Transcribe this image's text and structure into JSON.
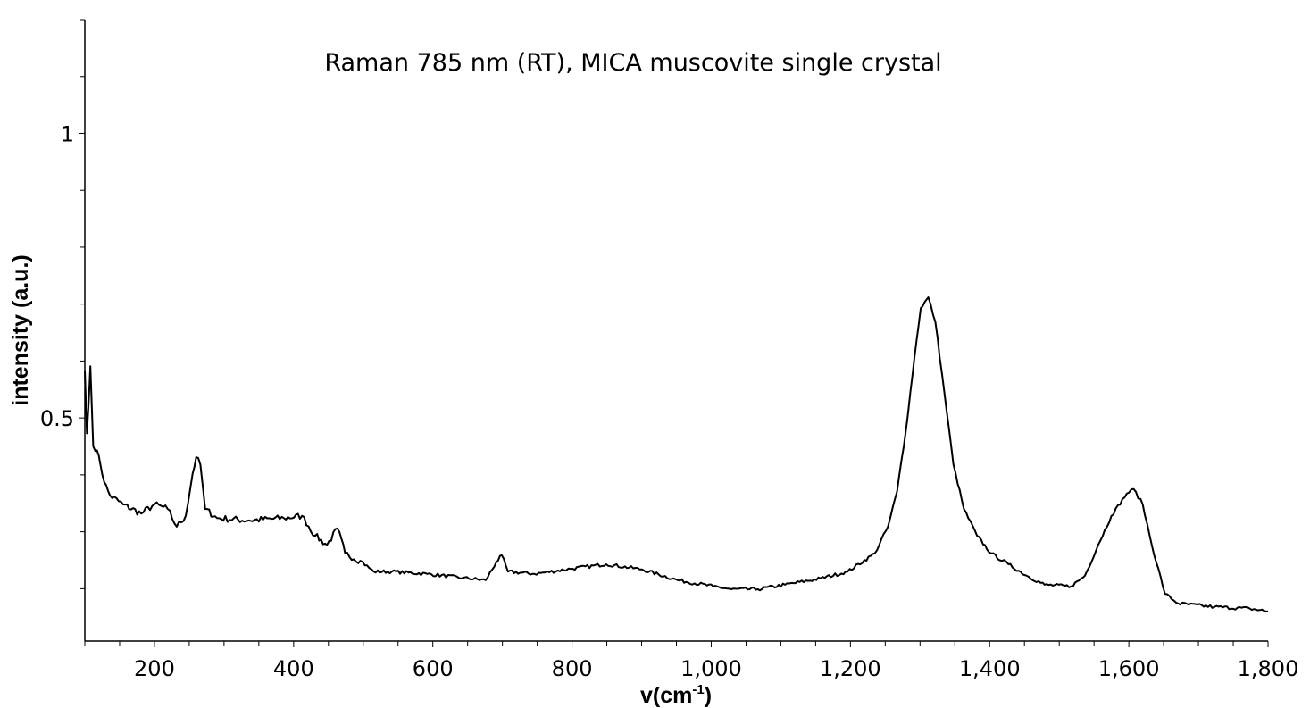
{
  "chart_data": {
    "type": "line",
    "title": "Raman 785 nm (RT), MICA muscovite single crystal",
    "xlabel": "v(cm",
    "xlabel_superscript": "-1",
    "xlabel_suffix": ")",
    "ylabel": "intensity (a.u.)",
    "xlim": [
      100,
      1800
    ],
    "ylim": [
      0.108,
      1.2
    ],
    "x_ticks": [
      200,
      400,
      600,
      800,
      1000,
      1200,
      1400,
      1600,
      1800
    ],
    "x_tick_labels": [
      "200",
      "400",
      "600",
      "800",
      "1,000",
      "1,200",
      "1,400",
      "1,600",
      "1,800"
    ],
    "x_minor_step": 50,
    "y_ticks": [
      0.5,
      1
    ],
    "y_tick_labels": [
      "0.5",
      "1"
    ],
    "y_minor_step": 0.1,
    "grid": false,
    "line_color": "#000000",
    "series": [
      {
        "x": [
          100,
          103,
          108,
          112,
          115,
          120,
          128,
          136,
          155,
          181,
          200,
          219,
          232,
          245,
          255,
          260,
          266,
          273,
          290,
          335,
          386,
          412,
          431,
          448,
          463,
          474,
          496,
          515,
          541,
          592,
          643,
          676,
          691,
          699,
          708,
          746,
          798,
          849,
          900,
          952,
          1003,
          1029,
          1067,
          1106,
          1157,
          1196,
          1235,
          1254,
          1267,
          1280,
          1292,
          1301,
          1312,
          1322,
          1335,
          1348,
          1363,
          1382,
          1402,
          1427,
          1453,
          1479,
          1517,
          1537,
          1556,
          1575,
          1597,
          1607,
          1620,
          1633,
          1652,
          1671,
          1723,
          1774,
          1800
        ],
        "y": [
          0.583,
          0.473,
          0.591,
          0.45,
          0.442,
          0.434,
          0.387,
          0.364,
          0.348,
          0.332,
          0.348,
          0.34,
          0.309,
          0.328,
          0.403,
          0.431,
          0.418,
          0.34,
          0.324,
          0.32,
          0.324,
          0.328,
          0.293,
          0.277,
          0.306,
          0.262,
          0.249,
          0.23,
          0.23,
          0.226,
          0.219,
          0.215,
          0.246,
          0.259,
          0.23,
          0.226,
          0.235,
          0.243,
          0.234,
          0.215,
          0.204,
          0.199,
          0.199,
          0.207,
          0.218,
          0.23,
          0.262,
          0.309,
          0.371,
          0.481,
          0.607,
          0.693,
          0.712,
          0.669,
          0.544,
          0.418,
          0.34,
          0.293,
          0.262,
          0.243,
          0.223,
          0.207,
          0.204,
          0.223,
          0.277,
          0.328,
          0.367,
          0.375,
          0.348,
          0.277,
          0.191,
          0.174,
          0.168,
          0.165,
          0.16
        ]
      }
    ]
  }
}
